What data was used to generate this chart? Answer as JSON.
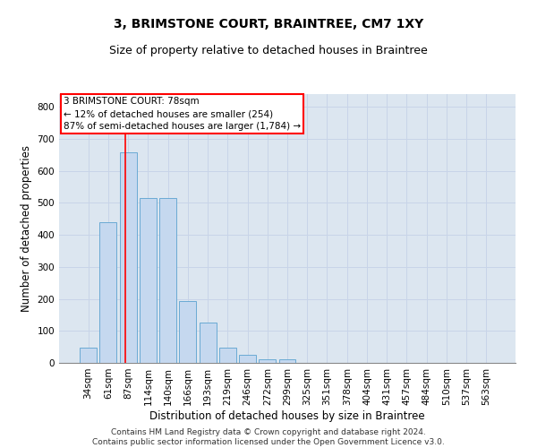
{
  "title": "3, BRIMSTONE COURT, BRAINTREE, CM7 1XY",
  "subtitle": "Size of property relative to detached houses in Braintree",
  "xlabel": "Distribution of detached houses by size in Braintree",
  "ylabel": "Number of detached properties",
  "bar_labels": [
    "34sqm",
    "61sqm",
    "87sqm",
    "114sqm",
    "140sqm",
    "166sqm",
    "193sqm",
    "219sqm",
    "246sqm",
    "272sqm",
    "299sqm",
    "325sqm",
    "351sqm",
    "378sqm",
    "404sqm",
    "431sqm",
    "457sqm",
    "484sqm",
    "510sqm",
    "537sqm",
    "563sqm"
  ],
  "bar_values": [
    47,
    441,
    657,
    516,
    516,
    193,
    125,
    47,
    24,
    10,
    10,
    0,
    0,
    0,
    0,
    0,
    0,
    0,
    0,
    0,
    0
  ],
  "bar_color": "#c5d8ef",
  "bar_edgecolor": "#6aaad4",
  "annotation_box_text": "3 BRIMSTONE COURT: 78sqm\n← 12% of detached houses are smaller (254)\n87% of semi-detached houses are larger (1,784) →",
  "annotation_box_color": "red",
  "red_line_x": 1.85,
  "ylim": [
    0,
    840
  ],
  "yticks": [
    0,
    100,
    200,
    300,
    400,
    500,
    600,
    700,
    800
  ],
  "grid_color": "#c8d4e8",
  "background_color": "#dce6f0",
  "footer_line1": "Contains HM Land Registry data © Crown copyright and database right 2024.",
  "footer_line2": "Contains public sector information licensed under the Open Government Licence v3.0.",
  "title_fontsize": 10,
  "subtitle_fontsize": 9,
  "xlabel_fontsize": 8.5,
  "ylabel_fontsize": 8.5,
  "tick_fontsize": 7.5,
  "annot_fontsize": 7.5,
  "footer_fontsize": 6.5
}
